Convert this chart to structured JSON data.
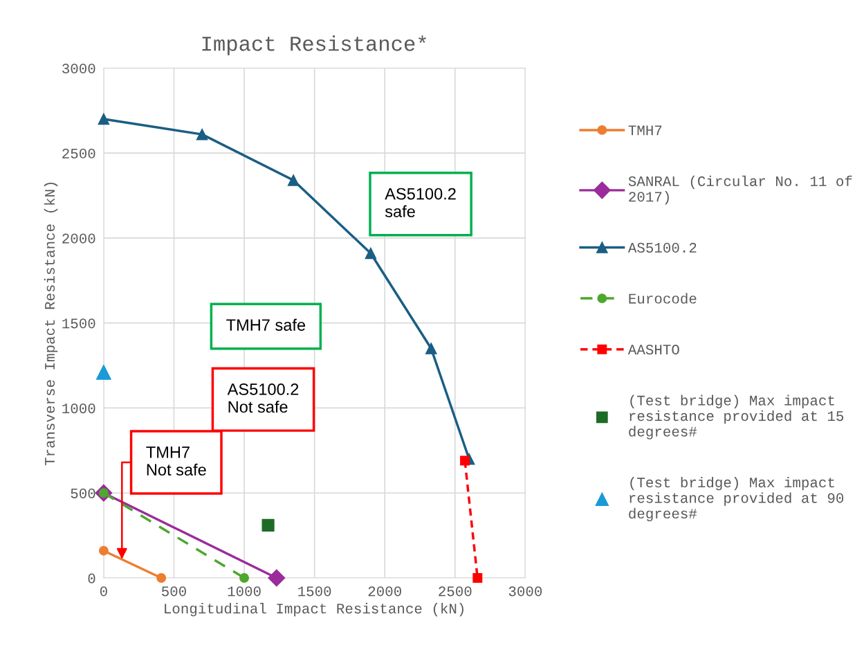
{
  "chart_data": {
    "type": "line",
    "title": "Impact Resistance*",
    "xlabel": "Longitudinal Impact Resistance (kN)",
    "ylabel": "Transverse Impact Resistance (kN)",
    "xlim": [
      0,
      3000
    ],
    "xticks": [
      0,
      500,
      1000,
      1500,
      2000,
      2500,
      3000
    ],
    "ylim": [
      0,
      3000
    ],
    "yticks": [
      0,
      500,
      1000,
      1500,
      2000,
      2500,
      3000
    ],
    "grid": true,
    "legend": "right",
    "series": [
      {
        "name": "TMH7",
        "color": "#ed7d31",
        "marker": "circle",
        "line_style": "solid",
        "x": [
          0,
          410
        ],
        "values": [
          160,
          0
        ]
      },
      {
        "name": "SANRAL (Circular No. 11 of 2017)",
        "color": "#9b2c9b",
        "marker": "diamond",
        "line_style": "solid",
        "x": [
          0,
          1230
        ],
        "values": [
          500,
          0
        ]
      },
      {
        "name": "AS5100.2",
        "color": "#1a5e84",
        "marker": "triangle",
        "line_style": "solid",
        "x": [
          0,
          700,
          1350,
          1900,
          2330,
          2600
        ],
        "values": [
          2700,
          2610,
          2340,
          1910,
          1350,
          700
        ]
      },
      {
        "name": "Eurocode",
        "color": "#4ea72e",
        "marker": "circle",
        "line_style": "dashed",
        "x": [
          0,
          1000
        ],
        "values": [
          500,
          0
        ]
      },
      {
        "name": "AASHTO",
        "color": "#ff0000",
        "marker": "square",
        "line_style": "dotted",
        "x": [
          2570,
          2660
        ],
        "values": [
          690,
          0
        ]
      },
      {
        "name": "(Test bridge) Max impact resistance provided at 15 degrees#",
        "type": "scatter",
        "color": "#1e6b28",
        "marker": "square",
        "x": [
          1170
        ],
        "values": [
          310
        ]
      },
      {
        "name": "(Test bridge) Max impact resistance provided at 90 degrees#",
        "type": "scatter",
        "color": "#1a9ad6",
        "marker": "triangle",
        "x": [
          0
        ],
        "values": [
          1210
        ]
      }
    ],
    "annotations": [
      "AS5100.2\nsafe",
      "TMH7 safe",
      "AS5100.2\nNot safe",
      {
        "text": "TMH7\nNot safe",
        "x": 130,
        "y": 110
      }
    ]
  }
}
